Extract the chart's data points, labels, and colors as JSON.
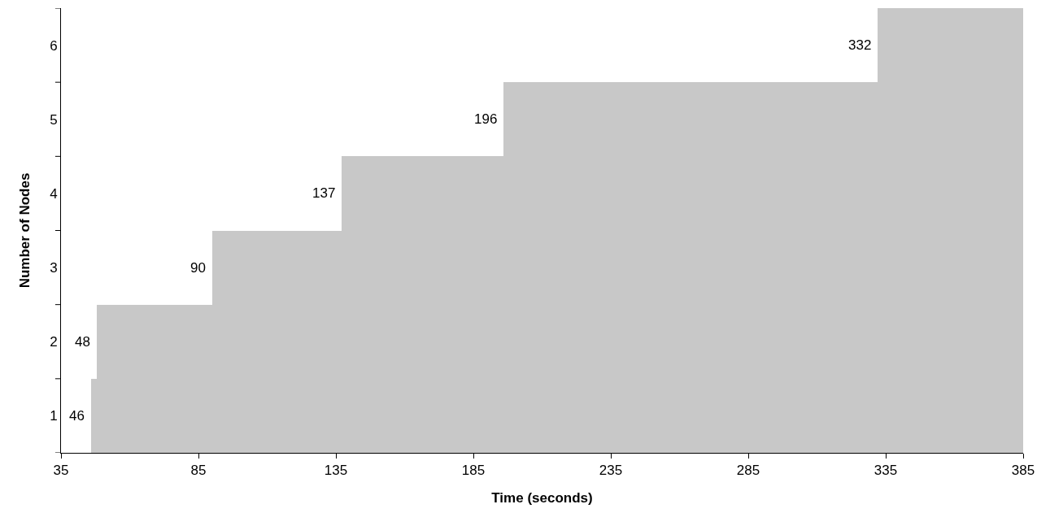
{
  "chart_data": {
    "type": "bar",
    "orientation": "horizontal",
    "xlabel": "Time (seconds)",
    "ylabel": "Number of Nodes",
    "categories": [
      "6",
      "5",
      "4",
      "3",
      "2",
      "1"
    ],
    "base": [
      332,
      196,
      137,
      90,
      48,
      46
    ],
    "values": [
      53,
      189,
      248,
      295,
      337,
      339
    ],
    "annotations": [
      {
        "text": "332",
        "x": 332,
        "y": "6"
      },
      {
        "text": "196",
        "x": 196,
        "y": "5"
      },
      {
        "text": "137",
        "x": 137,
        "y": "4"
      },
      {
        "text": "90",
        "x": 90,
        "y": "3"
      },
      {
        "text": "48",
        "x": 48,
        "y": "2"
      },
      {
        "text": "46",
        "x": 46,
        "y": "1"
      }
    ],
    "color": "#c8c8c8",
    "xlim": [
      35,
      385
    ],
    "xticks": [
      35,
      85,
      135,
      185,
      235,
      285,
      335,
      385
    ],
    "grid": false,
    "legend": false
  }
}
